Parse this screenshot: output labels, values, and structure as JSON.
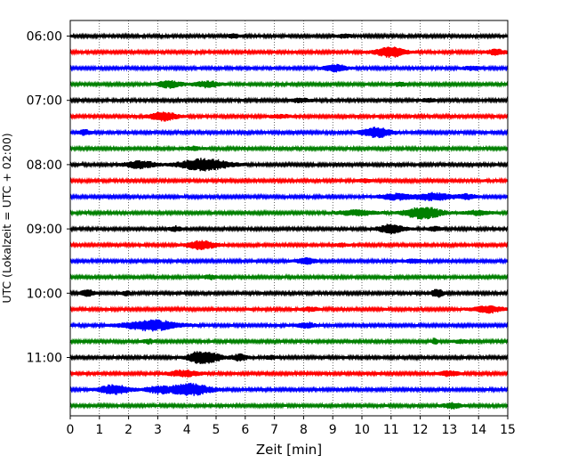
{
  "chart_data": {
    "type": "line",
    "subtype": "helicorder",
    "title": "",
    "xlabel": "Zeit  [min]",
    "ylabel": "UTC (Lokalzeit = UTC + 02:00)",
    "xlim": [
      0,
      15
    ],
    "xticks": [
      0,
      1,
      2,
      3,
      4,
      5,
      6,
      7,
      8,
      9,
      10,
      11,
      12,
      13,
      14,
      15
    ],
    "vertical_grid": "dotted",
    "yticks": [
      "06:00",
      "07:00",
      "08:00",
      "09:00",
      "10:00",
      "11:00"
    ],
    "trace_interval_minutes": 15,
    "start_time": "06:00",
    "colors": [
      "#000000",
      "#ff0000",
      "#0000ff",
      "#008000"
    ],
    "traces": [
      {
        "start": "06:00",
        "events": [
          {
            "t": 5.6,
            "amp": 0.35,
            "dur": 0.15
          },
          {
            "t": 9.4,
            "amp": 0.3,
            "dur": 0.2
          }
        ]
      },
      {
        "start": "06:15",
        "events": [
          {
            "t": 11.0,
            "amp": 0.8,
            "dur": 0.5
          },
          {
            "t": 14.6,
            "amp": 0.4,
            "dur": 0.3
          }
        ]
      },
      {
        "start": "06:30",
        "events": [
          {
            "t": 9.1,
            "amp": 0.5,
            "dur": 0.4
          },
          {
            "t": 13.8,
            "amp": 0.3,
            "dur": 0.3
          }
        ]
      },
      {
        "start": "06:45",
        "events": [
          {
            "t": 3.4,
            "amp": 0.55,
            "dur": 0.4
          },
          {
            "t": 4.7,
            "amp": 0.5,
            "dur": 0.4
          },
          {
            "t": 11.3,
            "amp": 0.25,
            "dur": 0.2
          }
        ]
      },
      {
        "start": "07:00",
        "events": [
          {
            "t": 7.9,
            "amp": 0.3,
            "dur": 0.3
          },
          {
            "t": 12.3,
            "amp": 0.3,
            "dur": 0.2
          }
        ]
      },
      {
        "start": "07:15",
        "events": [
          {
            "t": 3.2,
            "amp": 0.7,
            "dur": 0.45
          },
          {
            "t": 7.2,
            "amp": 0.25,
            "dur": 0.3
          }
        ]
      },
      {
        "start": "07:30",
        "events": [
          {
            "t": 0.5,
            "amp": 0.4,
            "dur": 0.2
          },
          {
            "t": 10.5,
            "amp": 0.8,
            "dur": 0.5
          }
        ]
      },
      {
        "start": "07:45",
        "events": [
          {
            "t": 4.2,
            "amp": 0.25,
            "dur": 0.3
          }
        ]
      },
      {
        "start": "08:00",
        "events": [
          {
            "t": 2.4,
            "amp": 0.6,
            "dur": 0.5
          },
          {
            "t": 4.6,
            "amp": 1.0,
            "dur": 0.8
          }
        ]
      },
      {
        "start": "08:15",
        "events": [
          {
            "t": 10.1,
            "amp": 0.25,
            "dur": 0.2
          }
        ]
      },
      {
        "start": "08:30",
        "events": [
          {
            "t": 11.2,
            "amp": 0.45,
            "dur": 0.6
          },
          {
            "t": 12.5,
            "amp": 0.55,
            "dur": 0.6
          },
          {
            "t": 13.6,
            "amp": 0.35,
            "dur": 0.3
          }
        ]
      },
      {
        "start": "08:45",
        "events": [
          {
            "t": 9.8,
            "amp": 0.4,
            "dur": 0.6
          },
          {
            "t": 12.1,
            "amp": 1.0,
            "dur": 0.6
          },
          {
            "t": 14.0,
            "amp": 0.35,
            "dur": 0.4
          }
        ]
      },
      {
        "start": "09:00",
        "events": [
          {
            "t": 3.6,
            "amp": 0.35,
            "dur": 0.2
          },
          {
            "t": 11.0,
            "amp": 0.75,
            "dur": 0.4
          },
          {
            "t": 12.5,
            "amp": 0.35,
            "dur": 0.2
          }
        ]
      },
      {
        "start": "09:15",
        "events": [
          {
            "t": 4.5,
            "amp": 0.7,
            "dur": 0.45
          },
          {
            "t": 9.3,
            "amp": 0.25,
            "dur": 0.2
          }
        ]
      },
      {
        "start": "09:30",
        "events": [
          {
            "t": 8.1,
            "amp": 0.5,
            "dur": 0.3
          },
          {
            "t": 11.8,
            "amp": 0.25,
            "dur": 0.3
          }
        ]
      },
      {
        "start": "09:45",
        "events": [
          {
            "t": 4.8,
            "amp": 0.3,
            "dur": 0.2
          }
        ]
      },
      {
        "start": "10:00",
        "events": [
          {
            "t": 0.6,
            "amp": 0.55,
            "dur": 0.2
          },
          {
            "t": 1.9,
            "amp": 0.35,
            "dur": 0.15
          },
          {
            "t": 12.6,
            "amp": 0.65,
            "dur": 0.2
          }
        ]
      },
      {
        "start": "10:15",
        "events": [
          {
            "t": 8.2,
            "amp": 0.3,
            "dur": 0.3
          },
          {
            "t": 14.3,
            "amp": 0.55,
            "dur": 0.5
          }
        ]
      },
      {
        "start": "10:30",
        "events": [
          {
            "t": 2.8,
            "amp": 0.85,
            "dur": 0.9
          },
          {
            "t": 8.1,
            "amp": 0.4,
            "dur": 0.3
          }
        ]
      },
      {
        "start": "10:45",
        "events": [
          {
            "t": 2.7,
            "amp": 0.3,
            "dur": 0.2
          },
          {
            "t": 12.5,
            "amp": 0.5,
            "dur": 0.1
          },
          {
            "t": 13.4,
            "amp": 0.25,
            "dur": 0.2
          }
        ]
      },
      {
        "start": "11:00",
        "events": [
          {
            "t": 4.4,
            "amp": 1.0,
            "dur": 0.35
          },
          {
            "t": 4.9,
            "amp": 0.6,
            "dur": 0.3
          },
          {
            "t": 5.8,
            "amp": 0.45,
            "dur": 0.3
          },
          {
            "t": 6.9,
            "amp": 0.25,
            "dur": 0.2
          }
        ]
      },
      {
        "start": "11:15",
        "events": [
          {
            "t": 3.9,
            "amp": 0.5,
            "dur": 0.5
          },
          {
            "t": 13.0,
            "amp": 0.4,
            "dur": 0.3
          }
        ]
      },
      {
        "start": "11:30",
        "events": [
          {
            "t": 1.5,
            "amp": 0.8,
            "dur": 0.5
          },
          {
            "t": 3.0,
            "amp": 0.5,
            "dur": 0.4
          },
          {
            "t": 4.1,
            "amp": 0.95,
            "dur": 0.7
          }
        ]
      },
      {
        "start": "11:45",
        "events": [
          {
            "t": 13.1,
            "amp": 0.4,
            "dur": 0.3
          }
        ]
      }
    ]
  }
}
